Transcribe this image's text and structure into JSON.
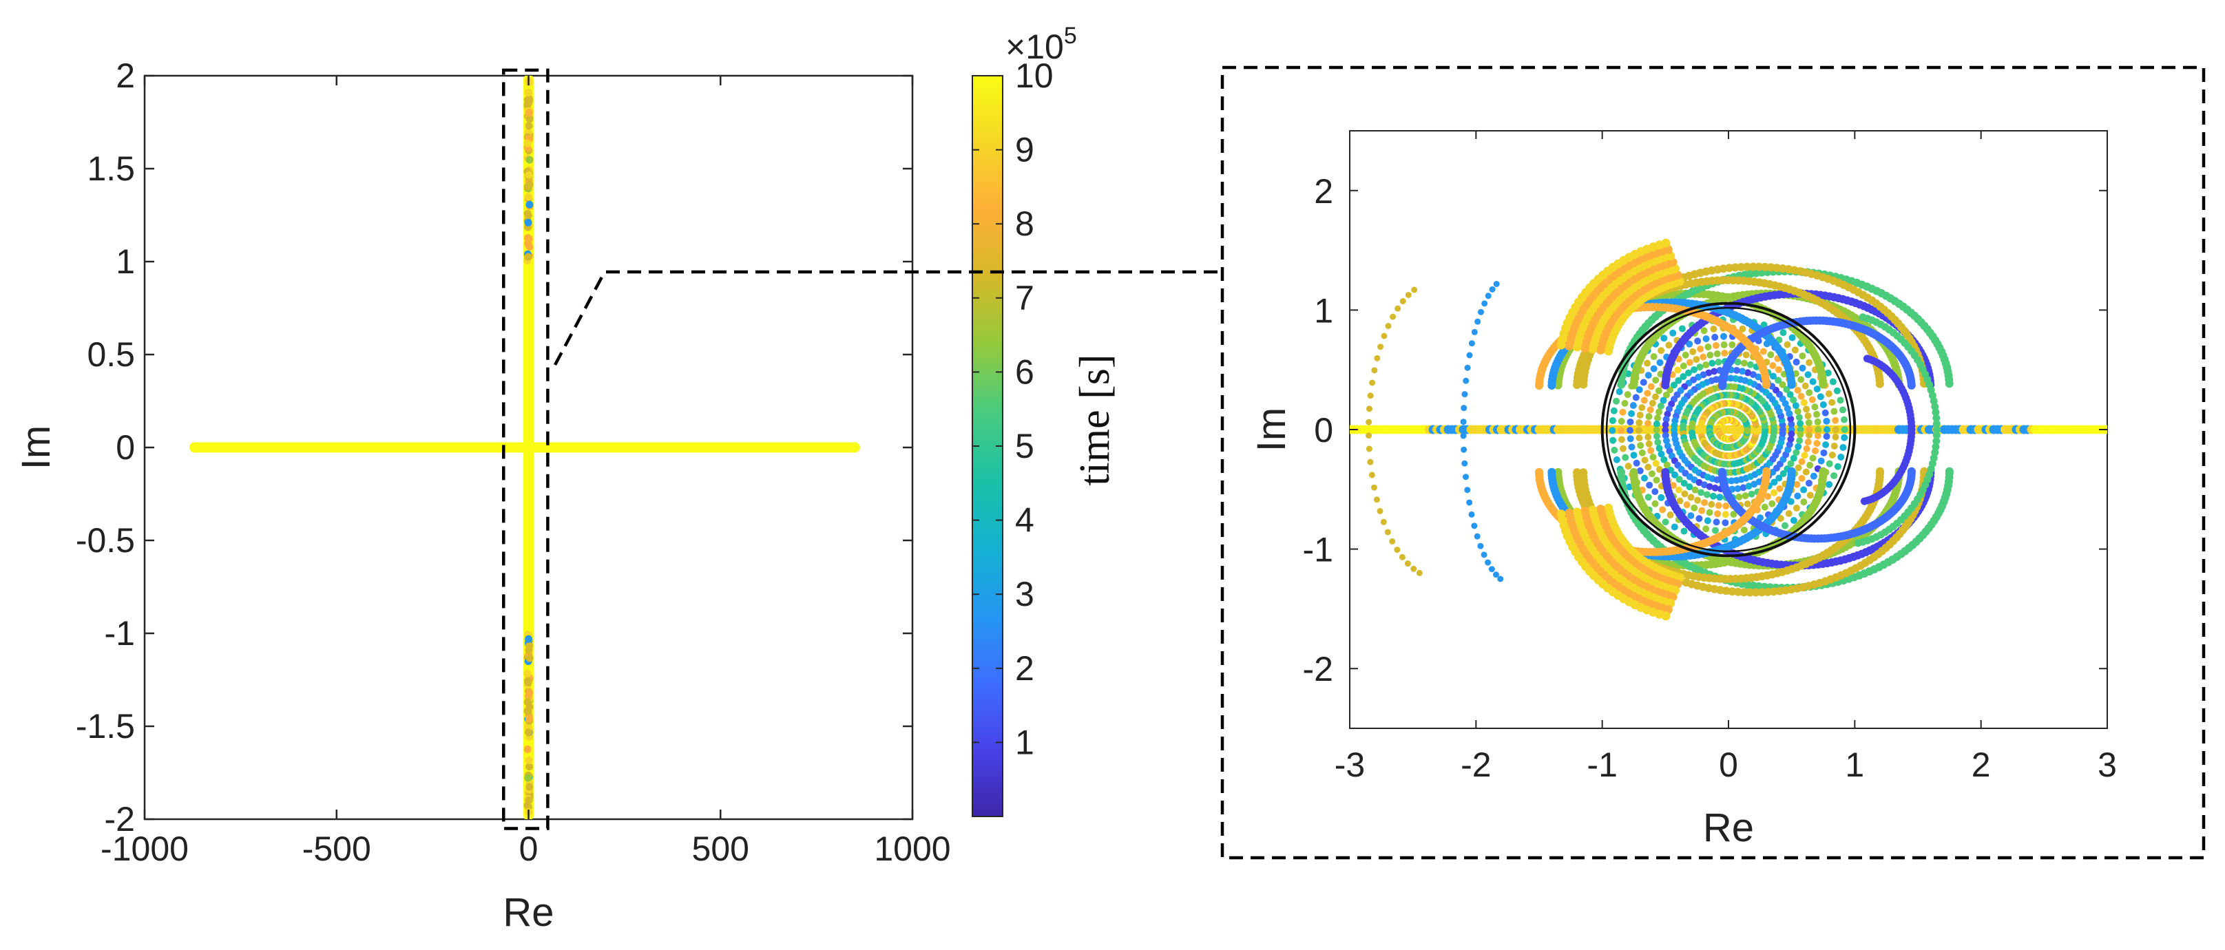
{
  "chart_data": [
    {
      "type": "scatter",
      "id": "full-view",
      "xlabel": "Re",
      "ylabel": "Im",
      "xlim": [
        -1000,
        1000
      ],
      "ylim": [
        -2,
        2
      ],
      "xticks": [
        -1000,
        -500,
        0,
        500,
        1000
      ],
      "xtick_labels": [
        "-1000",
        "-500",
        "0",
        "500",
        "1000"
      ],
      "yticks": [
        2,
        1.5,
        1,
        0.5,
        0,
        -0.5,
        -1,
        -1.5,
        -2
      ],
      "ytick_labels": [
        "2",
        "1.5",
        "1",
        "0.5",
        "0",
        "-0.5",
        "-1",
        "-1.5",
        "-2"
      ],
      "real_axis_range": [
        -870,
        850
      ],
      "imag_axis_range": [
        -2,
        2
      ],
      "zoom_box": {
        "re": [
          -65,
          50
        ],
        "im": [
          -2.05,
          2.03
        ]
      },
      "grid": false
    },
    {
      "type": "scatter",
      "id": "zoom-view",
      "xlabel": "Re",
      "ylabel": "Im",
      "xlim": [
        -3,
        3
      ],
      "ylim": [
        -2.5,
        2.5
      ],
      "xticks": [
        -3,
        -2,
        -1,
        0,
        1,
        2,
        3
      ],
      "xtick_labels": [
        "-3",
        "-2",
        "-1",
        "0",
        "1",
        "2",
        "3"
      ],
      "yticks": [
        2,
        1,
        0,
        -1,
        -2
      ],
      "ytick_labels": [
        "2",
        "1",
        "0",
        "-1",
        "-2"
      ],
      "unit_circle": {
        "radius": 1
      },
      "grid": false
    }
  ],
  "colorbar": {
    "label": "time [s]",
    "multiplier": "×10",
    "exponent": "5",
    "range": [
      0,
      10
    ],
    "ticks": [
      1,
      2,
      3,
      4,
      5,
      6,
      7,
      8,
      9,
      10
    ],
    "tick_labels": [
      "1",
      "2",
      "3",
      "4",
      "5",
      "6",
      "7",
      "8",
      "9",
      "10"
    ],
    "colormap": [
      "#3e26a8",
      "#4742e8",
      "#3e6dfe",
      "#2596f1",
      "#15b1d3",
      "#1ac1a8",
      "#4bcb7c",
      "#95c93b",
      "#d6b92a",
      "#feaf39",
      "#f5d727",
      "#f9fb15"
    ]
  }
}
